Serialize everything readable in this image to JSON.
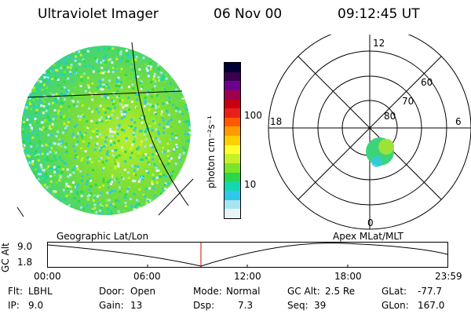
{
  "header": {
    "title": "Ultraviolet Imager",
    "date": "06 Nov 00",
    "time": "09:12:45 UT"
  },
  "colorbar": {
    "unit_label": "photon cm⁻²s⁻¹",
    "tick_100": "100",
    "tick_10": "10",
    "colors": [
      "#000033",
      "#3a0050",
      "#6e0090",
      "#9c004e",
      "#c80014",
      "#e8201a",
      "#ff5a00",
      "#ff9a00",
      "#ffd000",
      "#ffff30",
      "#c8f028",
      "#7ae62a",
      "#2ad84a",
      "#16d8b0",
      "#30c8e8",
      "#a8e4f0",
      "#e8f4f8"
    ]
  },
  "polar_plot": {
    "label_top": "12",
    "label_bottom": "0",
    "label_left": "18",
    "label_right": "6",
    "ring_60": "60",
    "ring_70": "70",
    "ring_80": "80"
  },
  "timeline": {
    "y_axis_label": "GC Alt",
    "y_tick_top": "9.0",
    "y_tick_bottom": "1.8",
    "left_caption": "Geographic Lat/Lon",
    "right_caption": "Apex MLat/MLT",
    "x_ticks": [
      "00:00",
      "06:00",
      "12:00",
      "18:00",
      "23:59"
    ],
    "marker_color": "#dd0000"
  },
  "info": {
    "flt_label": "Flt:",
    "flt_value": "LBHL",
    "ip_label": "IP:",
    "ip_value": "9.0",
    "door_label": "Door:",
    "door_value": "Open",
    "gain_label": "Gain:",
    "gain_value": "13",
    "mode_label": "Mode:",
    "mode_value": "Normal",
    "dsp_label": "Dsp:",
    "dsp_value": "7.3",
    "gcalt_label": "GC Alt:",
    "gcalt_value": "2.5 Re",
    "seq_label": "Seq:",
    "seq_value": "39",
    "glat_label": "GLat:",
    "glat_value": "-77.7",
    "glon_label": "GLon:",
    "glon_value": "167.0"
  }
}
